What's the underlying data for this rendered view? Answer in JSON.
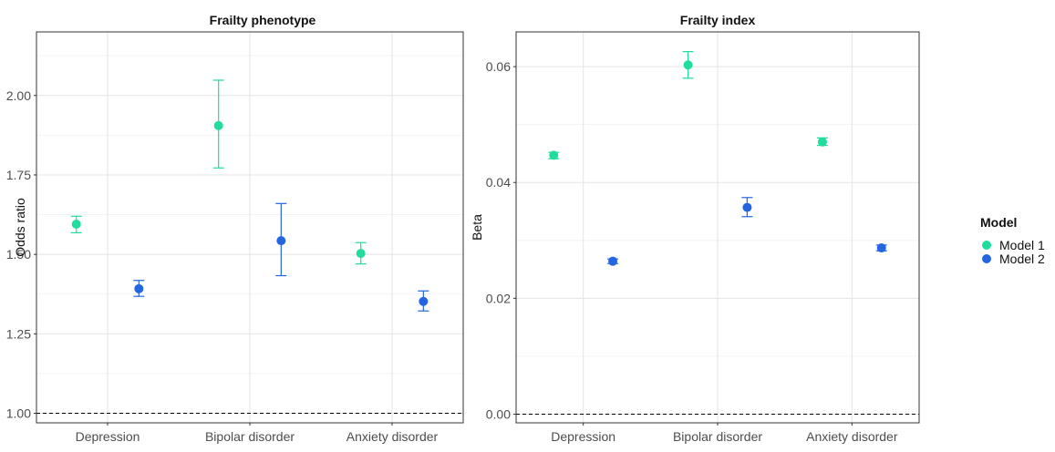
{
  "chart_data": [
    {
      "type": "scatter",
      "title": "Frailty phenotype",
      "ylabel": "Odds ratio",
      "xlabel": "",
      "categories": [
        "Depression",
        "Bipolar disorder",
        "Anxiety disorder"
      ],
      "ylim": [
        0.97,
        2.2
      ],
      "yticks": [
        "1.00",
        "1.25",
        "1.50",
        "1.75",
        "2.00"
      ],
      "yticks_values": [
        1.0,
        1.25,
        1.5,
        1.75,
        2.0
      ],
      "reference_line": 1.0,
      "grid": true,
      "series": [
        {
          "name": "Model 1",
          "color": "#1fdd9b",
          "values": [
            1.595,
            1.905,
            1.503
          ],
          "lower": [
            1.568,
            1.772,
            1.47
          ],
          "upper": [
            1.62,
            2.048,
            1.537
          ]
        },
        {
          "name": "Model 2",
          "color": "#2366e0",
          "values": [
            1.392,
            1.543,
            1.352
          ],
          "lower": [
            1.368,
            1.433,
            1.322
          ],
          "upper": [
            1.418,
            1.66,
            1.385
          ]
        }
      ]
    },
    {
      "type": "scatter",
      "title": "Frailty index",
      "ylabel": "Beta",
      "xlabel": "",
      "categories": [
        "Depression",
        "Bipolar disorder",
        "Anxiety disorder"
      ],
      "ylim": [
        -0.0015,
        0.066
      ],
      "yticks": [
        "0.00",
        "0.02",
        "0.04",
        "0.06"
      ],
      "yticks_values": [
        0.0,
        0.02,
        0.04,
        0.06
      ],
      "reference_line": 0.0,
      "grid": true,
      "series": [
        {
          "name": "Model 1",
          "color": "#1fdd9b",
          "values": [
            0.0447,
            0.0603,
            0.047
          ],
          "lower": [
            0.0441,
            0.058,
            0.0464
          ],
          "upper": [
            0.0452,
            0.0626,
            0.0477
          ]
        },
        {
          "name": "Model 2",
          "color": "#2366e0",
          "values": [
            0.0264,
            0.0357,
            0.0287
          ],
          "lower": [
            0.026,
            0.0341,
            0.0282
          ],
          "upper": [
            0.0268,
            0.0374,
            0.0292
          ]
        }
      ]
    }
  ],
  "legend": {
    "title": "Model",
    "placement": "right",
    "items": [
      {
        "label": "Model 1",
        "color": "#1fdd9b"
      },
      {
        "label": "Model 2",
        "color": "#2366e0"
      }
    ]
  }
}
